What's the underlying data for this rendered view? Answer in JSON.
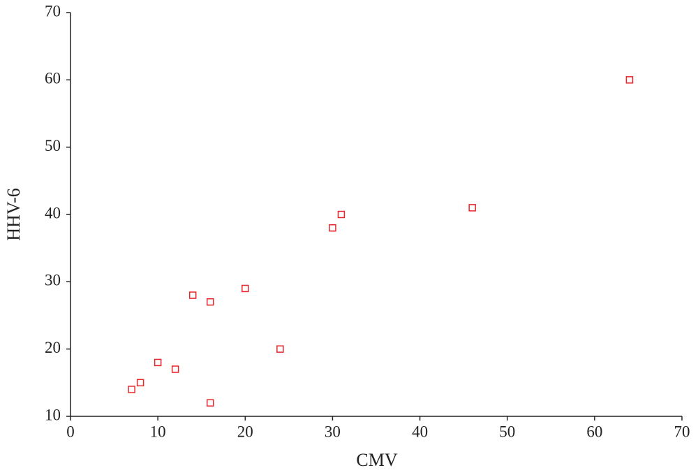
{
  "chart_data": {
    "type": "scatter",
    "x_label": "CMV",
    "y_label": "HHV-6",
    "series": [
      {
        "name": null,
        "color": "#e8262b",
        "x": [
          7,
          8,
          10,
          12,
          14,
          16,
          16,
          20,
          24,
          30,
          31,
          46,
          64
        ],
        "values": [
          14,
          15,
          18,
          17,
          28,
          27,
          12,
          29,
          20,
          38,
          40,
          41,
          60
        ]
      }
    ],
    "xlim": [
      0,
      70
    ],
    "xticks": [
      0,
      10,
      20,
      30,
      40,
      50,
      60,
      70
    ],
    "ylim": [
      10,
      70
    ],
    "yticks": [
      10,
      20,
      30,
      40,
      50,
      60,
      70
    ],
    "grid": false
  }
}
